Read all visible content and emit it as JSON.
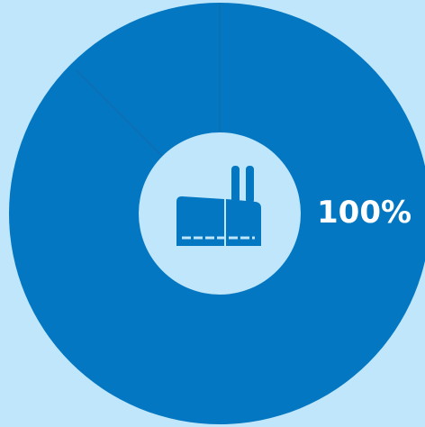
{
  "colors": {
    "background": "#bfe6fa",
    "ring": "#0377c2",
    "divider": "#1669a8",
    "center_fill": "#bfe6fa",
    "icon": "#0377c2"
  },
  "center_icon": "factory-icon",
  "chart_data": {
    "type": "pie",
    "variant": "donut",
    "slices": [
      {
        "value": 100,
        "color": "#0377c2"
      }
    ],
    "value_label": "100%"
  }
}
